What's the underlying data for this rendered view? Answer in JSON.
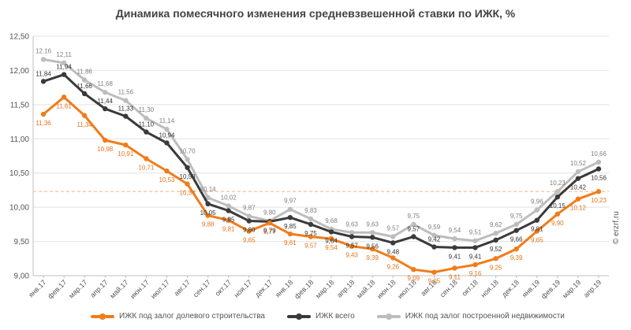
{
  "chart_data": {
    "type": "line",
    "title": "Динамика помесячного изменения средневзвешенной ставки по ИЖК, %",
    "xlabel": "",
    "ylabel": "",
    "ylim": [
      9.0,
      12.5
    ],
    "yticks": [
      "9,00",
      "9,50",
      "10,00",
      "10,50",
      "11,00",
      "11,50",
      "12,00",
      "12,50"
    ],
    "reference_line": 10.23,
    "categories": [
      "янв.17",
      "фев.17",
      "мар.17",
      "апр.17",
      "май.17",
      "июн.17",
      "июл.17",
      "авг.17",
      "сен.17",
      "окт.17",
      "ноя.17",
      "дек.17",
      "янв.18",
      "фев.18",
      "мар.18",
      "апр.18",
      "май.18",
      "июн.18",
      "июл.18",
      "авг.18",
      "сен.18",
      "окт.18",
      "ноя.18",
      "дек.18",
      "янв.19",
      "фев.19",
      "мар.19",
      "апр.19"
    ],
    "series": [
      {
        "name": "ИЖК под залог долевого строительства",
        "color": "#f07c1a",
        "values": [
          11.36,
          11.61,
          11.34,
          10.98,
          10.91,
          10.71,
          10.53,
          10.34,
          9.88,
          9.81,
          9.65,
          9.77,
          9.61,
          9.57,
          9.54,
          9.43,
          9.39,
          9.26,
          9.09,
          9.05,
          9.11,
          9.16,
          9.25,
          9.39,
          9.65,
          9.9,
          10.12,
          10.23
        ],
        "labels": [
          "11,36",
          "11,61",
          "11,34",
          "10,98",
          "10,91",
          "10,71",
          "10,53",
          "10,34",
          "9,88",
          "9,81",
          "9,65",
          "9,77",
          "9,61",
          "9,57",
          "9,54",
          "9,43",
          "9,39",
          "9,26",
          "9,09",
          "9,05",
          "9,11",
          "9,16",
          "9,25",
          "9,39",
          "9,65",
          "9,90",
          "10,12",
          "10,23"
        ]
      },
      {
        "name": "ИЖК всего",
        "color": "#3a3a3a",
        "values": [
          11.84,
          11.94,
          11.66,
          11.44,
          11.33,
          11.1,
          10.94,
          10.58,
          10.05,
          9.95,
          9.8,
          9.79,
          9.85,
          9.75,
          9.64,
          9.57,
          9.56,
          9.48,
          9.57,
          9.42,
          9.41,
          9.41,
          9.52,
          9.66,
          9.81,
          10.15,
          10.42,
          10.56
        ],
        "labels": [
          "11,84",
          "11,94",
          "11,66",
          "11,44",
          "11,33",
          "11,10",
          "10,94",
          "10,58",
          "10,05",
          "9,95",
          "9,80",
          "9,79",
          "9,85",
          "9,75",
          "9,64",
          "9,57",
          "9,56",
          "9,48",
          "9,57",
          "9,42",
          "9,41",
          "9,41",
          "9,52",
          "9,66",
          "9,81",
          "10,15",
          "10,42",
          "10,56"
        ]
      },
      {
        "name": "ИЖК под залог построенной недвижимости",
        "color": "#bdbdbd",
        "values": [
          12.16,
          12.11,
          11.86,
          11.68,
          11.56,
          11.3,
          11.14,
          10.7,
          10.14,
          10.02,
          9.87,
          9.8,
          9.97,
          9.83,
          9.68,
          9.63,
          9.63,
          9.57,
          9.75,
          9.59,
          9.54,
          9.51,
          9.62,
          9.75,
          9.96,
          10.23,
          10.52,
          10.66
        ],
        "labels": [
          "12,16",
          "12,11",
          "11,86",
          "11,68",
          "11,56",
          "11,30",
          "11,14",
          "10,70",
          "10,14",
          "10,02",
          "9,87",
          "9,80",
          "9,97",
          "9,83",
          "9,68",
          "9,63",
          "9,63",
          "9,57",
          "9,75",
          "9,59",
          "9,54",
          "9,51",
          "9,62",
          "9,75",
          "9,96",
          "10,23",
          "10,52",
          "10,66"
        ]
      }
    ],
    "legend_position": "bottom"
  },
  "watermark": "© erzrf.ru"
}
